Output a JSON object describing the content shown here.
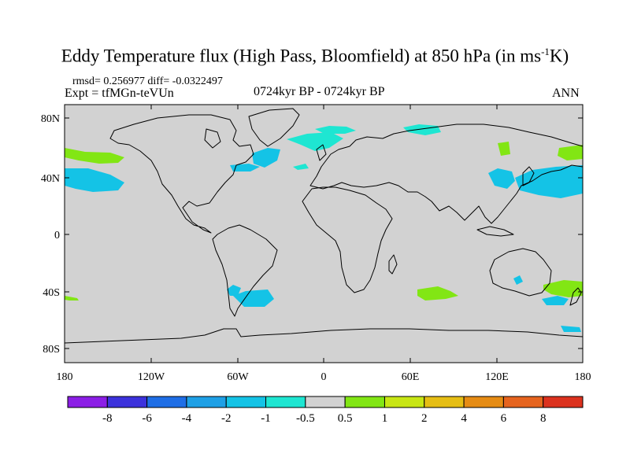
{
  "title": {
    "main_prefix": "Eddy Temperature flux (High Pass, Bloomfield) at 850 hPa (in ms",
    "superscript": "-1",
    "main_suffix": "K)"
  },
  "stats": "rmsd= 0.256977 diff= -0.0322497",
  "experiment": "Expt = tfMGn-teVUn",
  "period": "0724kyr BP - 0724kyr BP",
  "season": "ANN",
  "y_ticks": [
    "80N",
    "40N",
    "0",
    "40S",
    "80S"
  ],
  "x_ticks": [
    "180",
    "120W",
    "60W",
    "0",
    "60E",
    "120E",
    "180"
  ],
  "colorbar": {
    "labels": [
      "-8",
      "-6",
      "-4",
      "-2",
      "-1",
      "-0.5",
      "0.5",
      "1",
      "2",
      "4",
      "6",
      "8"
    ],
    "colors": [
      "#8c1ee6",
      "#3c32dc",
      "#1e6ee6",
      "#1ea0e6",
      "#14c3e6",
      "#1ee6d2",
      "#d2d2d2",
      "#82e614",
      "#c8e614",
      "#e6be14",
      "#e68c14",
      "#e6641e",
      "#dc321e"
    ]
  },
  "map_background": "#d2d2d2"
}
